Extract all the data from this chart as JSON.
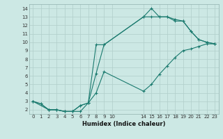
{
  "xlabel": "Humidex (Indice chaleur)",
  "bg_color": "#cce8e4",
  "grid_color": "#b0ceca",
  "line_color": "#1a7a6e",
  "xlim": [
    -0.5,
    23.5
  ],
  "ylim": [
    1.5,
    14.5
  ],
  "xticks": [
    0,
    1,
    2,
    3,
    4,
    5,
    6,
    7,
    8,
    9,
    10,
    14,
    15,
    16,
    17,
    18,
    19,
    20,
    21,
    22,
    23
  ],
  "yticks": [
    2,
    3,
    4,
    5,
    6,
    7,
    8,
    9,
    10,
    11,
    12,
    13,
    14
  ],
  "line1_x": [
    0,
    1,
    2,
    3,
    4,
    5,
    6,
    7,
    8,
    9,
    14,
    15,
    16,
    17,
    18,
    19,
    20,
    21,
    22,
    23
  ],
  "line1_y": [
    3.0,
    2.7,
    2.0,
    2.0,
    1.8,
    1.8,
    2.5,
    2.8,
    9.7,
    9.7,
    13.0,
    14.0,
    13.0,
    13.0,
    12.7,
    12.5,
    11.3,
    10.3,
    10.0,
    9.8
  ],
  "line2_x": [
    0,
    1,
    2,
    3,
    4,
    5,
    6,
    7,
    8,
    9,
    14,
    15,
    16,
    17,
    18,
    19,
    20,
    21,
    22,
    23
  ],
  "line2_y": [
    3.0,
    2.7,
    2.0,
    2.0,
    1.8,
    1.8,
    1.8,
    2.8,
    4.0,
    6.5,
    4.2,
    5.0,
    6.2,
    7.2,
    8.2,
    9.0,
    9.2,
    9.5,
    9.8,
    9.8
  ],
  "line3_x": [
    0,
    2,
    3,
    4,
    5,
    6,
    7,
    8,
    9,
    14,
    15,
    16,
    17,
    18,
    19,
    20,
    21,
    22,
    23
  ],
  "line3_y": [
    3.0,
    2.0,
    2.0,
    1.8,
    1.8,
    2.5,
    2.8,
    6.3,
    9.7,
    13.0,
    13.0,
    13.0,
    13.0,
    12.5,
    12.5,
    11.3,
    10.3,
    10.0,
    9.8
  ]
}
